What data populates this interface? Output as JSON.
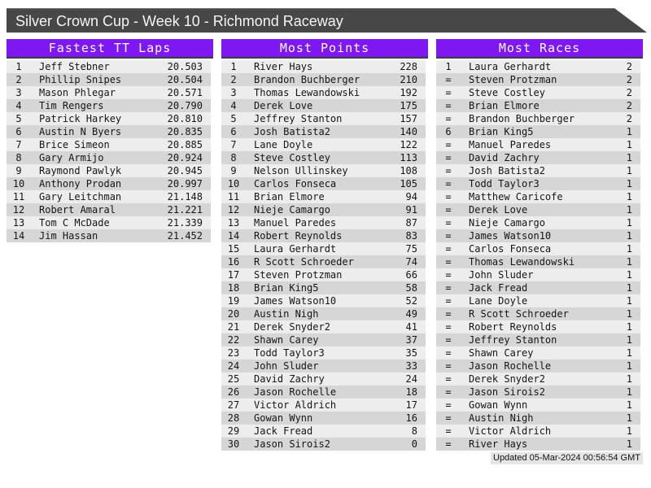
{
  "window_title": "Silver Crown Cup - Week 10 - Richmond Raceway",
  "updated_text": "Updated 05-Mar-2024 00:56:54 GMT",
  "colors": {
    "accent_purple": "#7E17F1",
    "header_border_dark": "#3c3c3c",
    "titlebar_gray": "#474747",
    "stripe_light": "#EDEDED",
    "stripe_dark": "#D6D6D6",
    "page_background": "#FFFFFF"
  },
  "tables": [
    {
      "id": "fastest-tt-laps",
      "title": "Fastest TT Laps",
      "rows": [
        [
          "1",
          "Jeff Stebner",
          "20.503"
        ],
        [
          "2",
          "Phillip Snipes",
          "20.504"
        ],
        [
          "3",
          "Mason Phlegar",
          "20.571"
        ],
        [
          "4",
          "Tim Rengers",
          "20.790"
        ],
        [
          "5",
          "Patrick Harkey",
          "20.810"
        ],
        [
          "6",
          "Austin N Byers",
          "20.835"
        ],
        [
          "7",
          "Brice Simeon",
          "20.885"
        ],
        [
          "8",
          "Gary Armijo",
          "20.924"
        ],
        [
          "9",
          "Raymond Pawlyk",
          "20.945"
        ],
        [
          "10",
          "Anthony Prodan",
          "20.997"
        ],
        [
          "11",
          "Gary Leitchman",
          "21.148"
        ],
        [
          "12",
          "Robert Amaral",
          "21.221"
        ],
        [
          "13",
          "Tom C McDade",
          "21.339"
        ],
        [
          "14",
          "Jim Hassan",
          "21.452"
        ]
      ]
    },
    {
      "id": "most-points",
      "title": "Most Points",
      "rows": [
        [
          "1",
          "River Hays",
          "228"
        ],
        [
          "2",
          "Brandon Buchberger",
          "210"
        ],
        [
          "3",
          "Thomas Lewandowski",
          "192"
        ],
        [
          "4",
          "Derek Love",
          "175"
        ],
        [
          "5",
          "Jeffrey Stanton",
          "157"
        ],
        [
          "6",
          "Josh Batista2",
          "140"
        ],
        [
          "7",
          "Lane Doyle",
          "122"
        ],
        [
          "8",
          "Steve Costley",
          "113"
        ],
        [
          "9",
          "Nelson Ullinskey",
          "108"
        ],
        [
          "10",
          "Carlos Fonseca",
          "105"
        ],
        [
          "11",
          "Brian Elmore",
          "94"
        ],
        [
          "12",
          "Nieje Camargo",
          "91"
        ],
        [
          "13",
          "Manuel Paredes",
          "87"
        ],
        [
          "14",
          "Robert Reynolds",
          "83"
        ],
        [
          "15",
          "Laura Gerhardt",
          "75"
        ],
        [
          "16",
          "R Scott Schroeder",
          "74"
        ],
        [
          "17",
          "Steven Protzman",
          "66"
        ],
        [
          "18",
          "Brian King5",
          "58"
        ],
        [
          "19",
          "James Watson10",
          "52"
        ],
        [
          "20",
          "Austin Nigh",
          "49"
        ],
        [
          "21",
          "Derek Snyder2",
          "41"
        ],
        [
          "22",
          "Shawn Carey",
          "37"
        ],
        [
          "23",
          "Todd Taylor3",
          "35"
        ],
        [
          "24",
          "John Sluder",
          "33"
        ],
        [
          "25",
          "David Zachry",
          "24"
        ],
        [
          "26",
          "Jason Rochelle",
          "18"
        ],
        [
          "27",
          "Victor Aldrich",
          "17"
        ],
        [
          "28",
          "Gowan Wynn",
          "16"
        ],
        [
          "29",
          "Jack Fread",
          "8"
        ],
        [
          "30",
          "Jason Sirois2",
          "0"
        ]
      ]
    },
    {
      "id": "most-races",
      "title": "Most Races",
      "rows": [
        [
          "1",
          "Laura Gerhardt",
          "2"
        ],
        [
          "=",
          "Steven Protzman",
          "2"
        ],
        [
          "=",
          "Steve Costley",
          "2"
        ],
        [
          "=",
          "Brian Elmore",
          "2"
        ],
        [
          "=",
          "Brandon Buchberger",
          "2"
        ],
        [
          "6",
          "Brian King5",
          "1"
        ],
        [
          "=",
          "Manuel Paredes",
          "1"
        ],
        [
          "=",
          "David Zachry",
          "1"
        ],
        [
          "=",
          "Josh Batista2",
          "1"
        ],
        [
          "=",
          "Todd Taylor3",
          "1"
        ],
        [
          "=",
          "Matthew Caricofe",
          "1"
        ],
        [
          "=",
          "Derek Love",
          "1"
        ],
        [
          "=",
          "Nieje Camargo",
          "1"
        ],
        [
          "=",
          "James Watson10",
          "1"
        ],
        [
          "=",
          "Carlos Fonseca",
          "1"
        ],
        [
          "=",
          "Thomas Lewandowski",
          "1"
        ],
        [
          "=",
          "John Sluder",
          "1"
        ],
        [
          "=",
          "Jack Fread",
          "1"
        ],
        [
          "=",
          "Lane Doyle",
          "1"
        ],
        [
          "=",
          "R Scott Schroeder",
          "1"
        ],
        [
          "=",
          "Robert Reynolds",
          "1"
        ],
        [
          "=",
          "Jeffrey Stanton",
          "1"
        ],
        [
          "=",
          "Shawn Carey",
          "1"
        ],
        [
          "=",
          "Jason Rochelle",
          "1"
        ],
        [
          "=",
          "Derek Snyder2",
          "1"
        ],
        [
          "=",
          "Jason Sirois2",
          "1"
        ],
        [
          "=",
          "Gowan Wynn",
          "1"
        ],
        [
          "=",
          "Austin Nigh",
          "1"
        ],
        [
          "=",
          "Victor Aldrich",
          "1"
        ],
        [
          "=",
          "River Hays",
          "1"
        ]
      ]
    }
  ]
}
